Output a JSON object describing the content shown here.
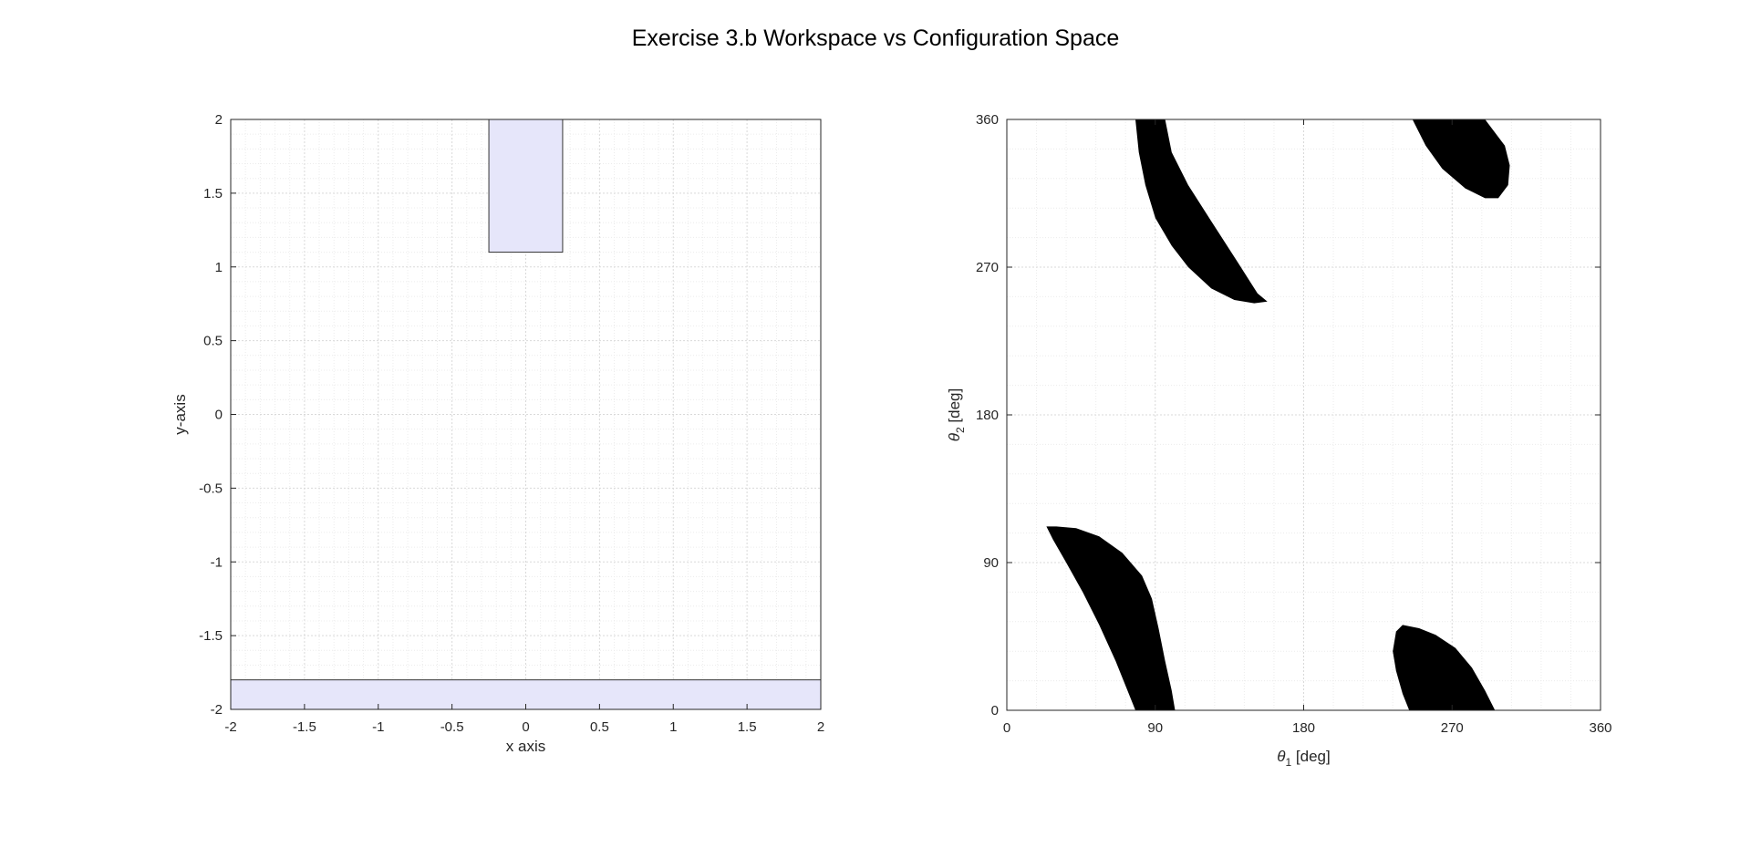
{
  "figure": {
    "title": "Exercise 3.b Workspace vs Configuration Space",
    "background": "#ffffff"
  },
  "chart_data": [
    {
      "type": "area",
      "name": "workspace",
      "xlabel": "x axis",
      "ylabel": "y-axis",
      "xlim": [
        -2,
        2
      ],
      "ylim": [
        -2,
        2
      ],
      "xticks": [
        -2,
        -1.5,
        -1,
        -0.5,
        0,
        0.5,
        1,
        1.5,
        2
      ],
      "yticks": [
        -2,
        -1.5,
        -1,
        -0.5,
        0,
        0.5,
        1,
        1.5,
        2
      ],
      "minor_step": 0.1,
      "grid": true,
      "obstacles": [
        {
          "x": [
            -0.25,
            0.25
          ],
          "y": [
            1.1,
            2.0
          ]
        },
        {
          "x": [
            -2.0,
            2.0
          ],
          "y": [
            -2.0,
            -1.8
          ]
        }
      ],
      "fill_color": "#e6e6fa",
      "edge_color": "#333333"
    },
    {
      "type": "area",
      "name": "configuration-space",
      "xlabel": "θ1 [deg]",
      "ylabel": "θ2 [deg]",
      "xlim": [
        0,
        360
      ],
      "ylim": [
        0,
        360
      ],
      "xticks": [
        0,
        90,
        180,
        270,
        360
      ],
      "yticks": [
        0,
        90,
        180,
        270,
        360
      ],
      "minor_step": 18,
      "grid": true,
      "fill_color": "#000000",
      "obstacle_regions": [
        {
          "points": [
            [
              78,
              360
            ],
            [
              96,
              360
            ],
            [
              100,
              340
            ],
            [
              110,
              320
            ],
            [
              124,
              298
            ],
            [
              140,
              273
            ],
            [
              152,
              254
            ],
            [
              158,
              249
            ],
            [
              150,
              248
            ],
            [
              138,
              250
            ],
            [
              124,
              257
            ],
            [
              110,
              270
            ],
            [
              100,
              283
            ],
            [
              90,
              300
            ],
            [
              84,
              320
            ],
            [
              80,
              340
            ]
          ]
        },
        {
          "points": [
            [
              246,
              360
            ],
            [
              290,
              360
            ],
            [
              302,
              344
            ],
            [
              305,
              332
            ],
            [
              304,
              320
            ],
            [
              298,
              312
            ],
            [
              290,
              312
            ],
            [
              278,
              318
            ],
            [
              264,
              330
            ],
            [
              254,
              344
            ]
          ]
        },
        {
          "points": [
            [
              24,
              112
            ],
            [
              30,
              112
            ],
            [
              42,
              111
            ],
            [
              56,
              106
            ],
            [
              70,
              96
            ],
            [
              82,
              82
            ],
            [
              88,
              68
            ],
            [
              92,
              50
            ],
            [
              96,
              30
            ],
            [
              100,
              12
            ],
            [
              102,
              0
            ],
            [
              78,
              0
            ],
            [
              74,
              10
            ],
            [
              66,
              30
            ],
            [
              56,
              52
            ],
            [
              46,
              72
            ],
            [
              36,
              90
            ],
            [
              28,
              104
            ]
          ]
        },
        {
          "points": [
            [
              236,
              48
            ],
            [
              240,
              52
            ],
            [
              250,
              50
            ],
            [
              260,
              46
            ],
            [
              272,
              38
            ],
            [
              282,
              26
            ],
            [
              290,
              12
            ],
            [
              296,
              0
            ],
            [
              244,
              0
            ],
            [
              240,
              10
            ],
            [
              236,
              24
            ],
            [
              234,
              36
            ]
          ]
        }
      ]
    }
  ]
}
